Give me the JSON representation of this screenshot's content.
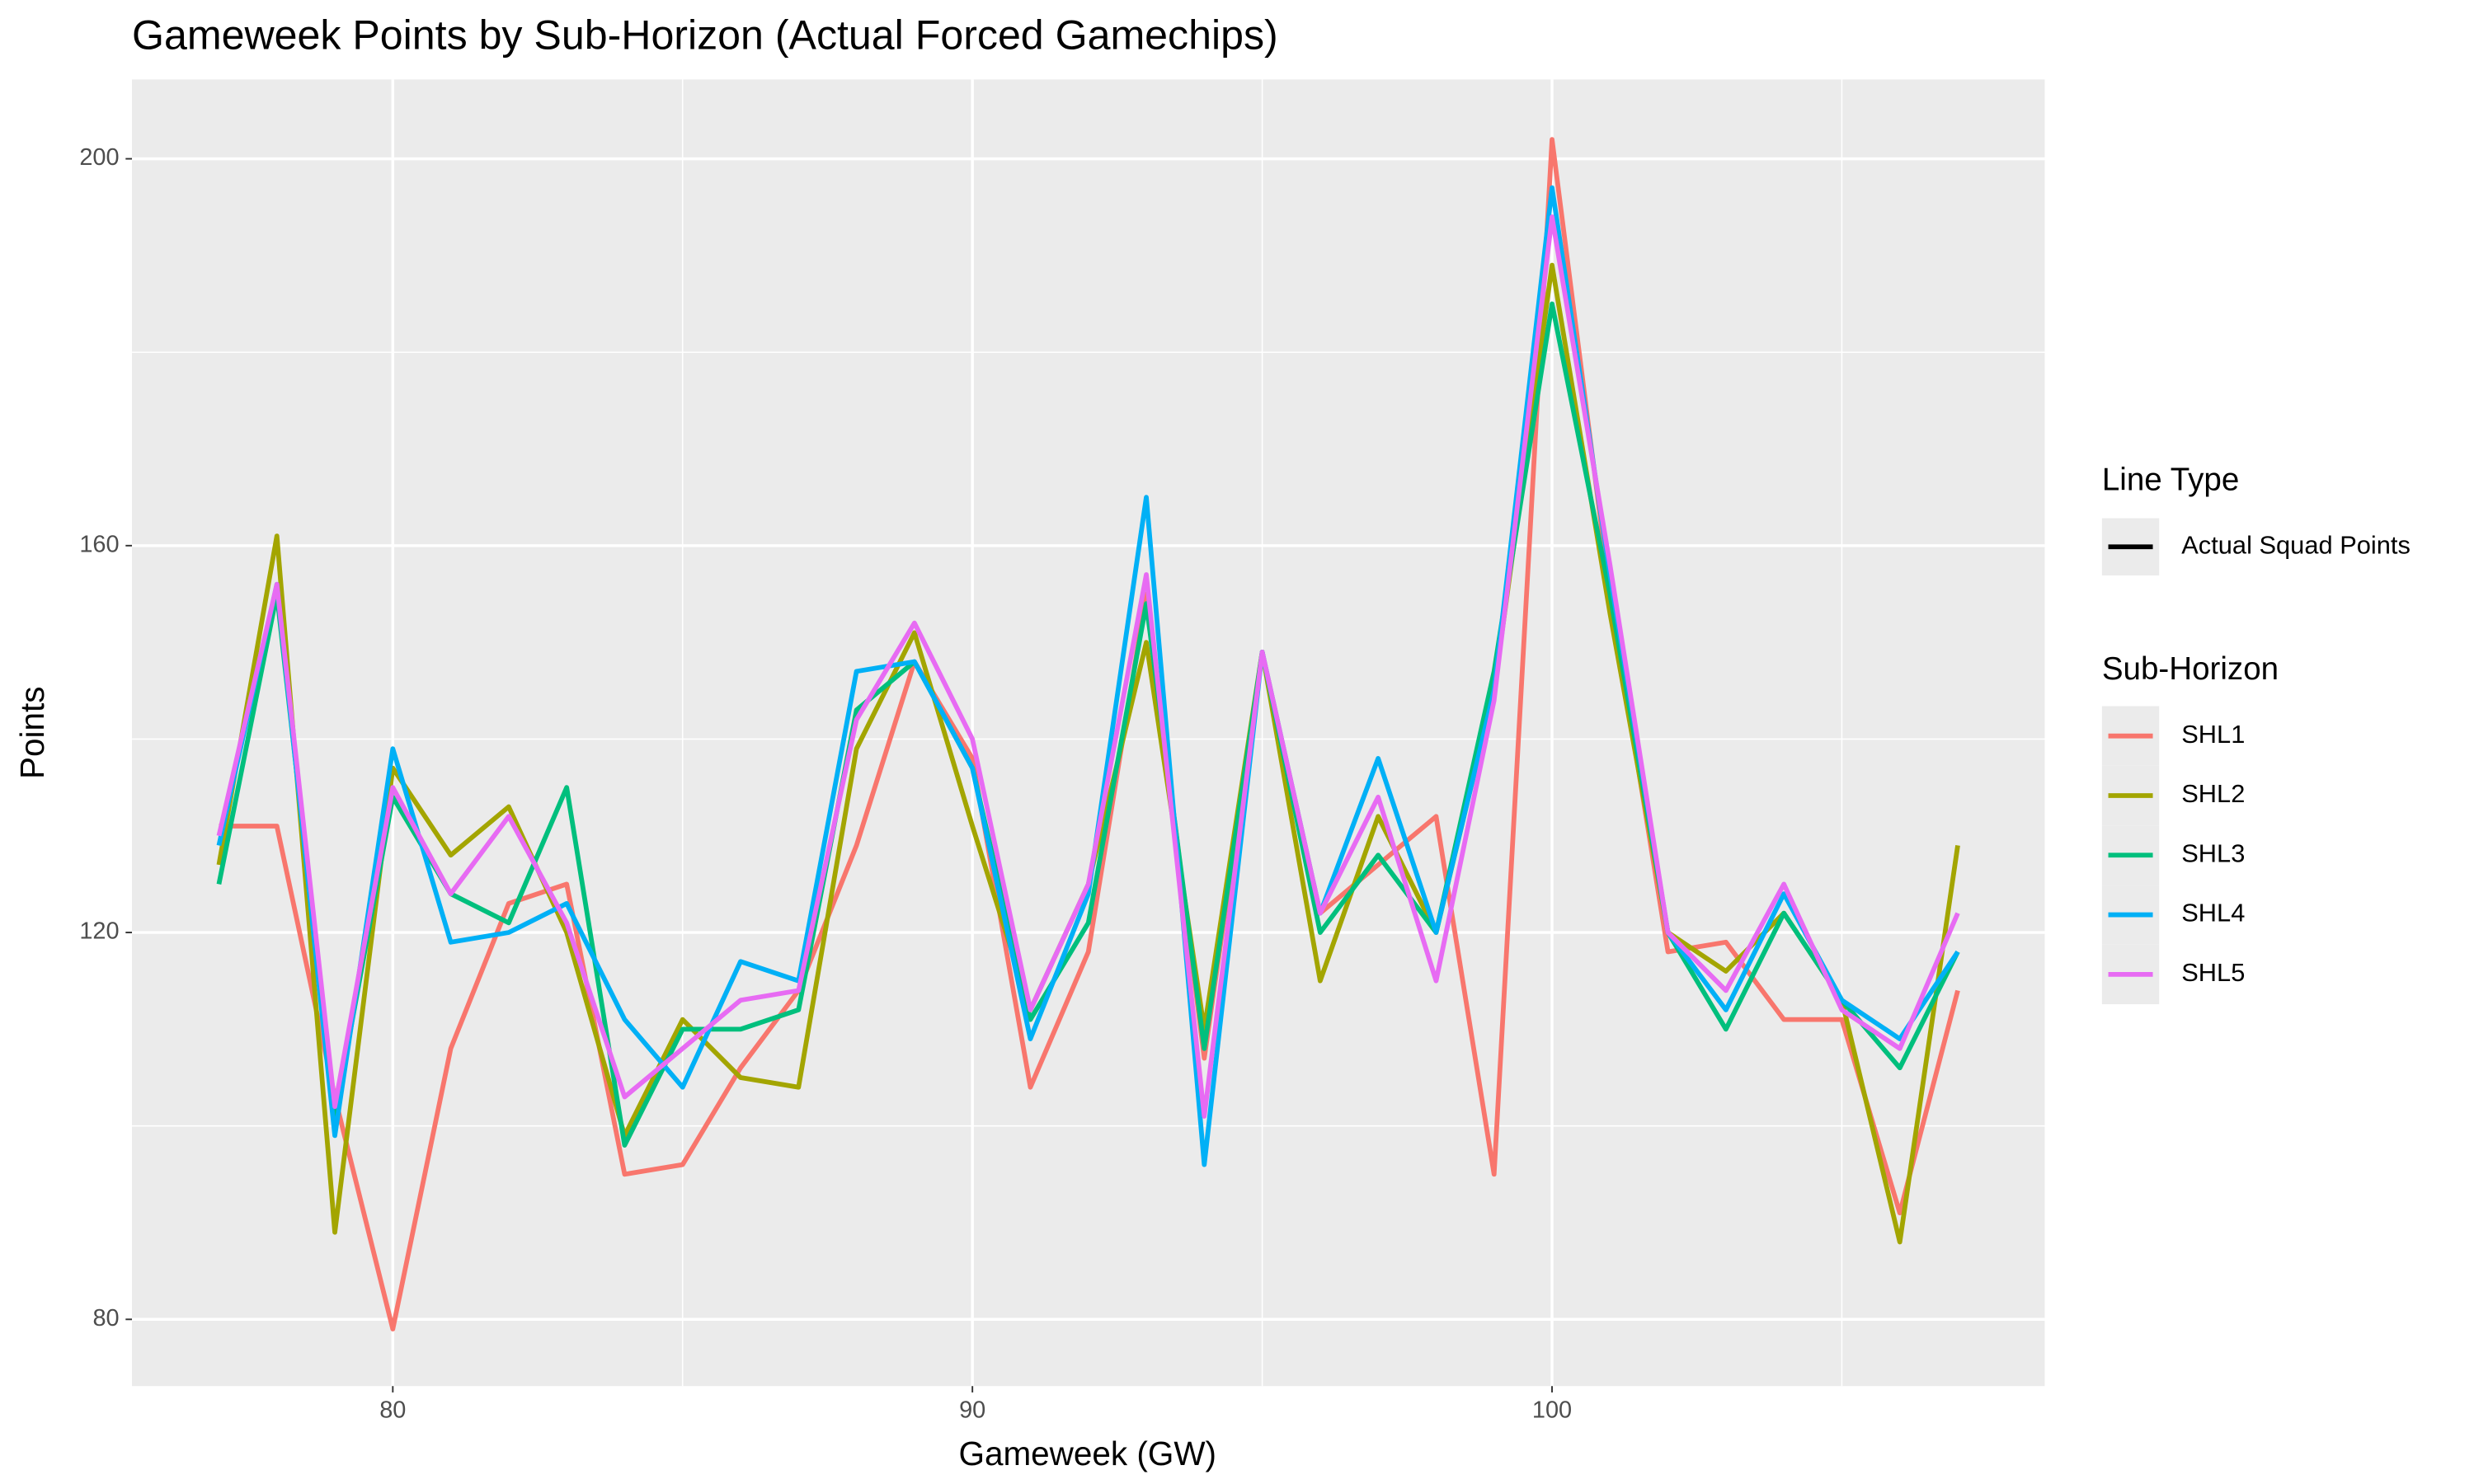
{
  "chart_data": {
    "type": "line",
    "title": "Gameweek Points by Sub-Horizon (Actual Forced Gamechips)",
    "x_label": "Gameweek (GW)",
    "y_label": "Points",
    "x": [
      77,
      78,
      79,
      80,
      81,
      82,
      83,
      84,
      85,
      86,
      87,
      88,
      89,
      90,
      91,
      92,
      93,
      94,
      95,
      96,
      97,
      98,
      99,
      100,
      101,
      102,
      103,
      104,
      105,
      106,
      107
    ],
    "series": [
      {
        "name": "SHL1",
        "color": "#f8766d",
        "values": [
          131,
          131,
          103,
          79,
          108,
          123,
          125,
          95,
          96,
          106,
          114,
          129,
          148,
          138,
          104,
          118,
          155,
          107,
          149,
          122,
          127,
          132,
          95,
          202,
          155,
          118,
          119,
          111,
          111,
          91,
          114
        ]
      },
      {
        "name": "SHL2",
        "color": "#a3a500",
        "values": [
          127,
          161,
          89,
          137,
          128,
          133,
          120,
          99,
          111,
          105,
          104,
          139,
          151,
          131,
          112,
          125,
          150,
          110,
          149,
          115,
          132,
          120,
          145,
          189,
          153,
          120,
          116,
          122,
          113,
          88,
          129
        ]
      },
      {
        "name": "SHL3",
        "color": "#00bf7d",
        "values": [
          125,
          155,
          101,
          134,
          124,
          121,
          135,
          98,
          110,
          110,
          112,
          143,
          148,
          137,
          111,
          121,
          154,
          108,
          149,
          120,
          128,
          120,
          147,
          185,
          155,
          120,
          110,
          122,
          113,
          106,
          118
        ]
      },
      {
        "name": "SHL4",
        "color": "#00b0f6",
        "values": [
          129,
          156,
          99,
          139,
          119,
          120,
          123,
          111,
          104,
          117,
          115,
          147,
          148,
          137,
          109,
          124,
          165,
          96,
          149,
          122,
          138,
          120,
          145,
          197,
          157,
          120,
          112,
          124,
          113,
          109,
          118
        ]
      },
      {
        "name": "SHL5",
        "color": "#e76bf3",
        "values": [
          130,
          156,
          102,
          135,
          124,
          132,
          121,
          103,
          108,
          113,
          114,
          142,
          152,
          140,
          112,
          125,
          157,
          101,
          149,
          122,
          134,
          115,
          144,
          194,
          158,
          120,
          114,
          125,
          112,
          108,
          122
        ]
      }
    ],
    "xlim": [
      75.5,
      108.5
    ],
    "xticks": [
      80,
      90,
      100
    ],
    "minor_xticks": [
      85,
      95,
      105
    ],
    "ylim": [
      73.1,
      208.2
    ],
    "yticks": [
      80,
      120,
      160,
      200
    ],
    "minor_yticks": [
      100,
      140,
      180
    ],
    "grid": true,
    "line_type_legend": {
      "title": "Line Type",
      "label": "Actual Squad Points"
    },
    "legend_title": "Sub-Horizon",
    "legend_position": "right"
  }
}
